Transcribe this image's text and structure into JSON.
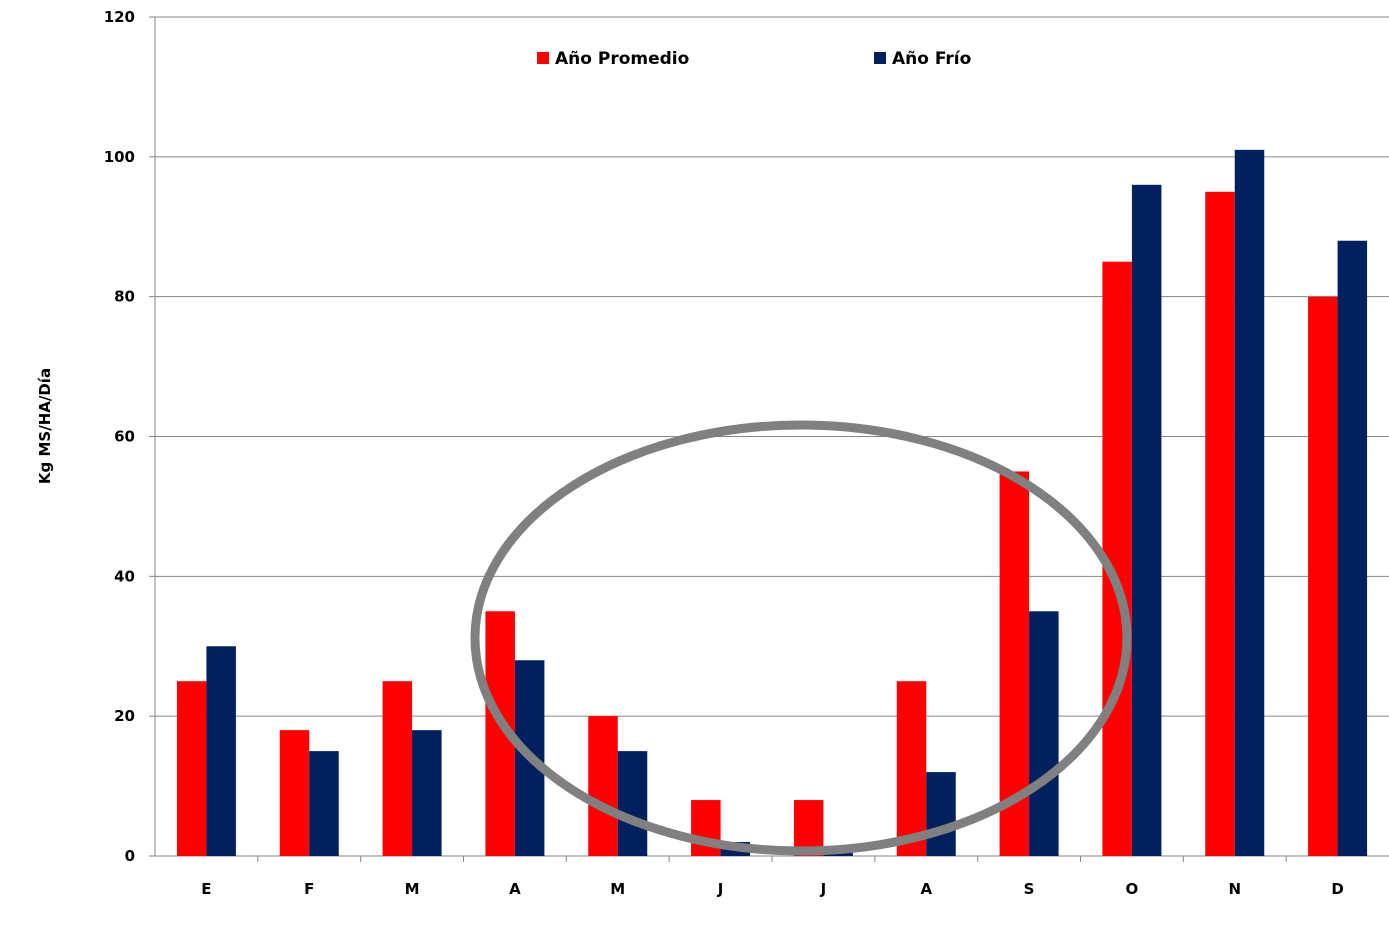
{
  "chart_data": {
    "type": "bar",
    "title": "",
    "xlabel": "",
    "ylabel": "Kg MS/HA/Día",
    "ylim": [
      0,
      120
    ],
    "yticks": [
      0,
      20,
      40,
      60,
      80,
      100,
      120
    ],
    "categories": [
      "E",
      "F",
      "M",
      "A",
      "M",
      "J",
      "J",
      "A",
      "S",
      "O",
      "N",
      "D"
    ],
    "series": [
      {
        "name": "Año Promedio",
        "color": "#ff0000",
        "values": [
          25,
          18,
          25,
          35,
          20,
          8,
          8,
          25,
          55,
          85,
          95,
          80
        ]
      },
      {
        "name": "Año Frío",
        "color": "#002060",
        "values": [
          30,
          15,
          18,
          28,
          15,
          2,
          1,
          12,
          35,
          96,
          101,
          88
        ]
      }
    ],
    "grid": true,
    "legend_position": "top",
    "annotation": {
      "shape": "ellipse",
      "color": "#808080",
      "encloses_categories": [
        "A",
        "M",
        "J",
        "J",
        "A",
        "S"
      ]
    }
  }
}
